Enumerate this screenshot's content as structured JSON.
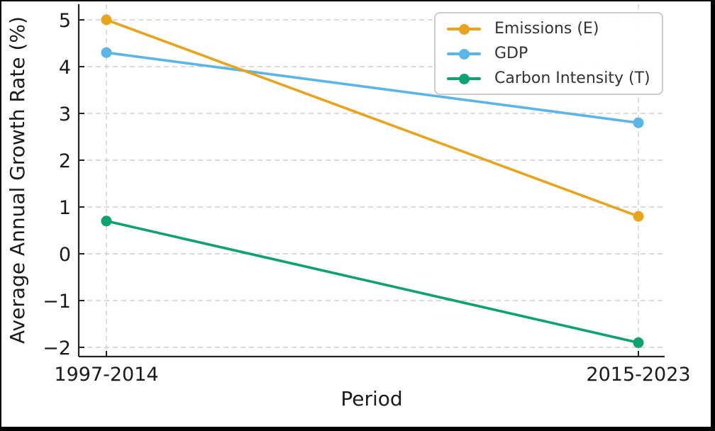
{
  "figure": {
    "background": "#ffffff",
    "border_color": "#000000"
  },
  "chart_data": {
    "type": "line",
    "title": "",
    "xlabel": "Period",
    "ylabel": "Average Annual Growth Rate (%)",
    "categories": [
      "1997-2014",
      "2015-2023"
    ],
    "series": [
      {
        "name": "Emissions (E)",
        "values": [
          5.0,
          0.8
        ],
        "color": "#E8A41E",
        "z": 3
      },
      {
        "name": "GDP",
        "values": [
          4.3,
          2.8
        ],
        "color": "#5BB5E7",
        "z": 1
      },
      {
        "name": "Carbon Intensity (T)",
        "values": [
          0.7,
          -1.9
        ],
        "color": "#10A173",
        "z": 2
      }
    ],
    "yticks": [
      {
        "value": 5,
        "label": "5"
      },
      {
        "value": 4,
        "label": "4"
      },
      {
        "value": 3,
        "label": "3"
      },
      {
        "value": 2,
        "label": "2"
      },
      {
        "value": 1,
        "label": "1"
      },
      {
        "value": 0,
        "label": "0"
      },
      {
        "value": -1,
        "label": "−1"
      },
      {
        "value": -2,
        "label": "−2"
      }
    ],
    "ylim": [
      -2.2,
      5.33
    ],
    "grid": "dashed-both-axes",
    "legend_position": "upper-right",
    "marker": "circle",
    "grid_color": "#cfcfcf",
    "axis_color": "#222222"
  }
}
